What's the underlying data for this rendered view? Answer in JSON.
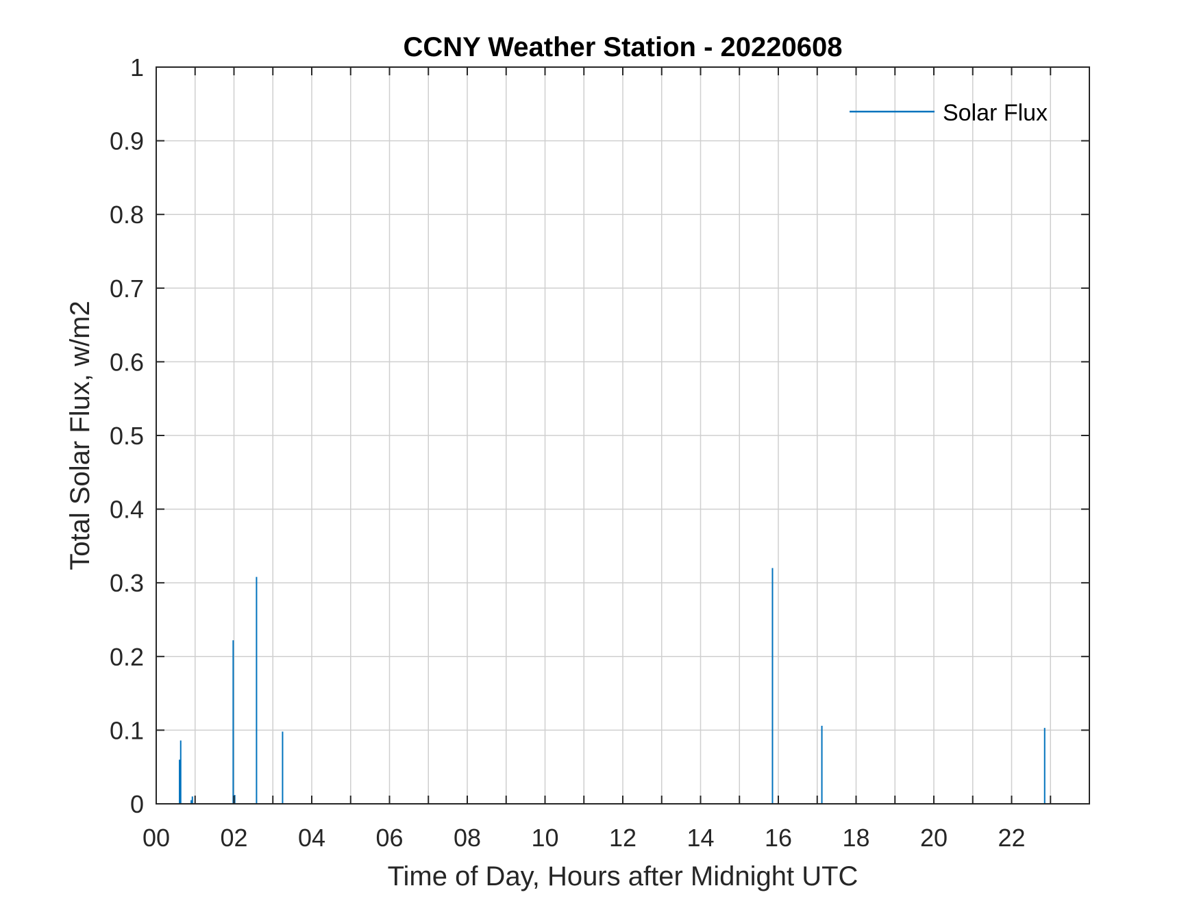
{
  "chart_data": {
    "type": "line",
    "title": "CCNY Weather Station - 20220608",
    "xlabel": "Time of Day, Hours after Midnight UTC",
    "ylabel": "Total Solar Flux, w/m2",
    "xlim": [
      0,
      24
    ],
    "ylim": [
      0,
      1
    ],
    "grid": true,
    "x_ticks": [
      0,
      2,
      4,
      6,
      8,
      10,
      12,
      14,
      16,
      18,
      20,
      22
    ],
    "x_tick_labels": [
      "00",
      "02",
      "04",
      "06",
      "08",
      "10",
      "12",
      "14",
      "16",
      "18",
      "20",
      "22"
    ],
    "x_minor_ticks": [
      1,
      3,
      5,
      7,
      9,
      11,
      13,
      15,
      17,
      19,
      21,
      23
    ],
    "y_ticks": [
      0,
      0.1,
      0.2,
      0.3,
      0.4,
      0.5,
      0.6,
      0.7,
      0.8,
      0.9,
      1
    ],
    "y_tick_labels": [
      "0",
      "0.1",
      "0.2",
      "0.3",
      "0.4",
      "0.5",
      "0.6",
      "0.7",
      "0.8",
      "0.9",
      "1"
    ],
    "legend": {
      "position": "top-right",
      "entries": [
        "Solar Flux"
      ]
    },
    "series": [
      {
        "name": "Solar Flux",
        "color": "#0072BD",
        "spikes": [
          {
            "x": 0.6,
            "y": 0.06
          },
          {
            "x": 0.63,
            "y": 0.086
          },
          {
            "x": 0.9,
            "y": 0.005
          },
          {
            "x": 0.93,
            "y": 0.01
          },
          {
            "x": 1.98,
            "y": 0.222
          },
          {
            "x": 2.02,
            "y": 0.012
          },
          {
            "x": 2.58,
            "y": 0.308
          },
          {
            "x": 3.25,
            "y": 0.098
          },
          {
            "x": 15.85,
            "y": 0.32
          },
          {
            "x": 17.12,
            "y": 0.106
          },
          {
            "x": 22.85,
            "y": 0.103
          }
        ]
      }
    ]
  }
}
